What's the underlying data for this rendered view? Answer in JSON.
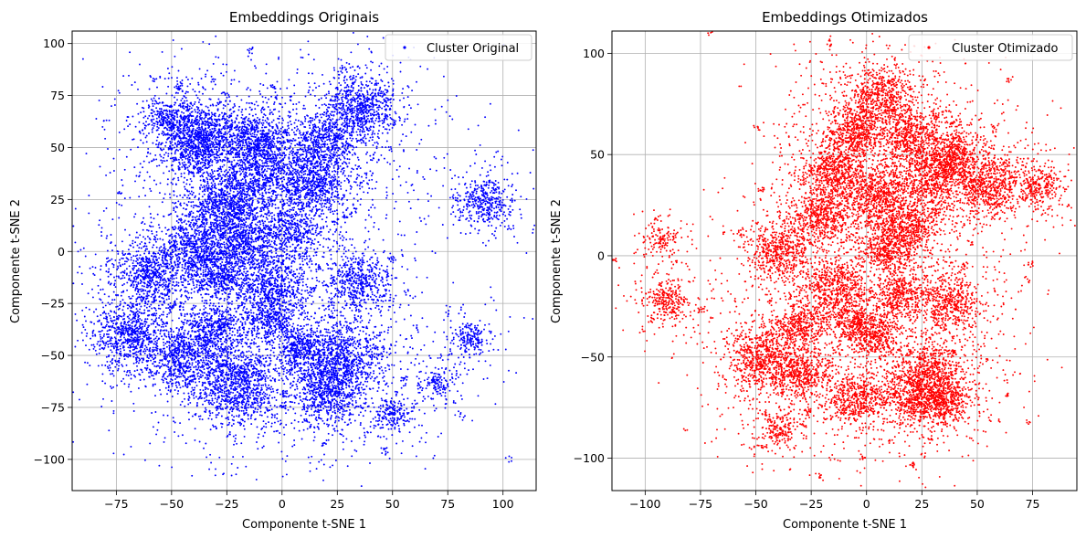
{
  "chart_data": [
    {
      "type": "scatter",
      "title": "Embeddings Originais",
      "xlabel": "Componente t-SNE 1",
      "ylabel": "Componente t-SNE 2",
      "xlim": [
        -95,
        115
      ],
      "ylim": [
        -115,
        106
      ],
      "xticks": [
        -75,
        -50,
        -25,
        0,
        25,
        50,
        75,
        100
      ],
      "yticks": [
        -100,
        -75,
        -50,
        -25,
        0,
        25,
        50,
        75,
        100
      ],
      "grid": true,
      "legend_position": "top-right",
      "series": [
        {
          "name": "Cluster Original",
          "color": "#0000ff",
          "seed": 7,
          "clusters": [
            {
              "x": -50,
              "y": 64,
              "r": 6
            },
            {
              "x": -32,
              "y": 58,
              "r": 7
            },
            {
              "x": -12,
              "y": 56,
              "r": 6
            },
            {
              "x": 35,
              "y": 68,
              "r": 9
            },
            {
              "x": 18,
              "y": 52,
              "r": 7
            },
            {
              "x": -40,
              "y": 50,
              "r": 7
            },
            {
              "x": -8,
              "y": 40,
              "r": 9
            },
            {
              "x": 15,
              "y": 32,
              "r": 8
            },
            {
              "x": -25,
              "y": 22,
              "r": 9
            },
            {
              "x": 92,
              "y": 24,
              "r": 6
            },
            {
              "x": -40,
              "y": 4,
              "r": 7
            },
            {
              "x": -15,
              "y": 5,
              "r": 7
            },
            {
              "x": 5,
              "y": 10,
              "r": 6
            },
            {
              "x": -60,
              "y": -10,
              "r": 8
            },
            {
              "x": -30,
              "y": -10,
              "r": 7
            },
            {
              "x": -5,
              "y": -18,
              "r": 8
            },
            {
              "x": 35,
              "y": -15,
              "r": 7
            },
            {
              "x": -5,
              "y": -33,
              "r": 5
            },
            {
              "x": -70,
              "y": -40,
              "r": 8
            },
            {
              "x": -45,
              "y": -50,
              "r": 9
            },
            {
              "x": -30,
              "y": -38,
              "r": 6
            },
            {
              "x": 28,
              "y": -52,
              "r": 9
            },
            {
              "x": 8,
              "y": -47,
              "r": 6
            },
            {
              "x": -20,
              "y": -65,
              "r": 10
            },
            {
              "x": 20,
              "y": -68,
              "r": 8
            },
            {
              "x": 50,
              "y": -78,
              "r": 4
            },
            {
              "x": 85,
              "y": -42,
              "r": 4
            },
            {
              "x": 70,
              "y": -64,
              "r": 3
            }
          ]
        }
      ]
    },
    {
      "type": "scatter",
      "title": "Embeddings Otimizados",
      "xlabel": "Componente t-SNE 1",
      "ylabel": "Componente t-SNE 2",
      "xlim": [
        -115,
        95
      ],
      "ylim": [
        -116,
        111
      ],
      "xticks": [
        -100,
        -75,
        -50,
        -25,
        0,
        25,
        50,
        75
      ],
      "yticks": [
        -100,
        -50,
        0,
        50,
        100
      ],
      "grid": true,
      "legend_position": "top-right",
      "series": [
        {
          "name": "Cluster Otimizado",
          "color": "#ff0000",
          "seed": 13,
          "clusters": [
            {
              "x": 5,
              "y": 78,
              "r": 8
            },
            {
              "x": -5,
              "y": 60,
              "r": 7
            },
            {
              "x": 20,
              "y": 60,
              "r": 7
            },
            {
              "x": 40,
              "y": 50,
              "r": 6
            },
            {
              "x": -15,
              "y": 42,
              "r": 7
            },
            {
              "x": 30,
              "y": 40,
              "r": 8
            },
            {
              "x": 55,
              "y": 35,
              "r": 8
            },
            {
              "x": 77,
              "y": 34,
              "r": 5
            },
            {
              "x": 5,
              "y": 30,
              "r": 8
            },
            {
              "x": -20,
              "y": 20,
              "r": 7
            },
            {
              "x": 20,
              "y": 15,
              "r": 7
            },
            {
              "x": -40,
              "y": 3,
              "r": 7
            },
            {
              "x": 10,
              "y": 3,
              "r": 6
            },
            {
              "x": -90,
              "y": -22,
              "r": 5
            },
            {
              "x": -15,
              "y": -15,
              "r": 7
            },
            {
              "x": 15,
              "y": -20,
              "r": 6
            },
            {
              "x": 38,
              "y": -23,
              "r": 7
            },
            {
              "x": -5,
              "y": -33,
              "r": 6
            },
            {
              "x": -30,
              "y": -35,
              "r": 6
            },
            {
              "x": 5,
              "y": -40,
              "r": 5
            },
            {
              "x": -47,
              "y": -50,
              "r": 8
            },
            {
              "x": -30,
              "y": -58,
              "r": 6
            },
            {
              "x": 30,
              "y": -58,
              "r": 8
            },
            {
              "x": -5,
              "y": -70,
              "r": 7
            },
            {
              "x": 20,
              "y": -70,
              "r": 7
            },
            {
              "x": 35,
              "y": -73,
              "r": 6
            },
            {
              "x": -40,
              "y": -85,
              "r": 4
            },
            {
              "x": -92,
              "y": 8,
              "r": 3
            }
          ]
        }
      ]
    }
  ]
}
